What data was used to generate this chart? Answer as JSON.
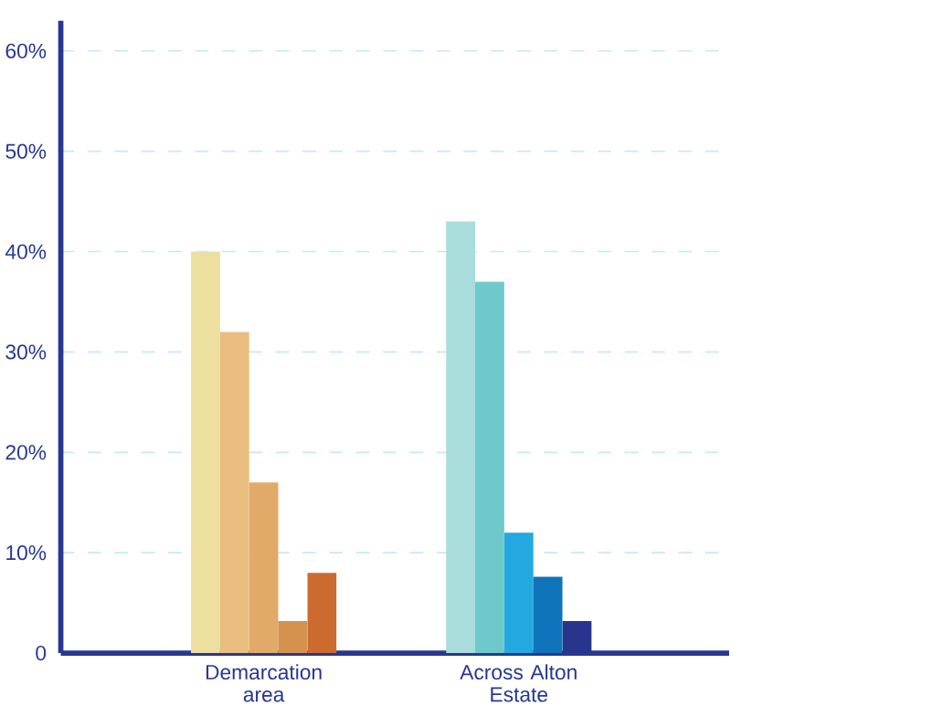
{
  "chart_data": {
    "type": "bar",
    "categories": [
      "Demarcation area",
      "Across Alton Estate"
    ],
    "series": [
      {
        "colors": [
          "#ecdfa0",
          "#a9dcdc"
        ],
        "values": [
          40,
          43
        ]
      },
      {
        "colors": [
          "#e9be7e",
          "#6ecaca"
        ],
        "values": [
          32,
          37
        ]
      },
      {
        "colors": [
          "#e2aa68",
          "#24a8e0"
        ],
        "values": [
          17,
          12
        ]
      },
      {
        "colors": [
          "#d4924f",
          "#1074bb"
        ],
        "values": [
          3.2,
          7.6
        ]
      },
      {
        "colors": [
          "#cb6b2f",
          "#27358f"
        ],
        "values": [
          8,
          3.2
        ]
      }
    ],
    "ylim": [
      0,
      63
    ],
    "yticks": [
      {
        "value": 0,
        "label": "0"
      },
      {
        "value": 10,
        "label": "10%"
      },
      {
        "value": 20,
        "label": "20%"
      },
      {
        "value": 30,
        "label": "30%"
      },
      {
        "value": 40,
        "label": "40%"
      },
      {
        "value": 50,
        "label": "50%"
      },
      {
        "value": 60,
        "label": "60%"
      }
    ],
    "grid": "y"
  }
}
